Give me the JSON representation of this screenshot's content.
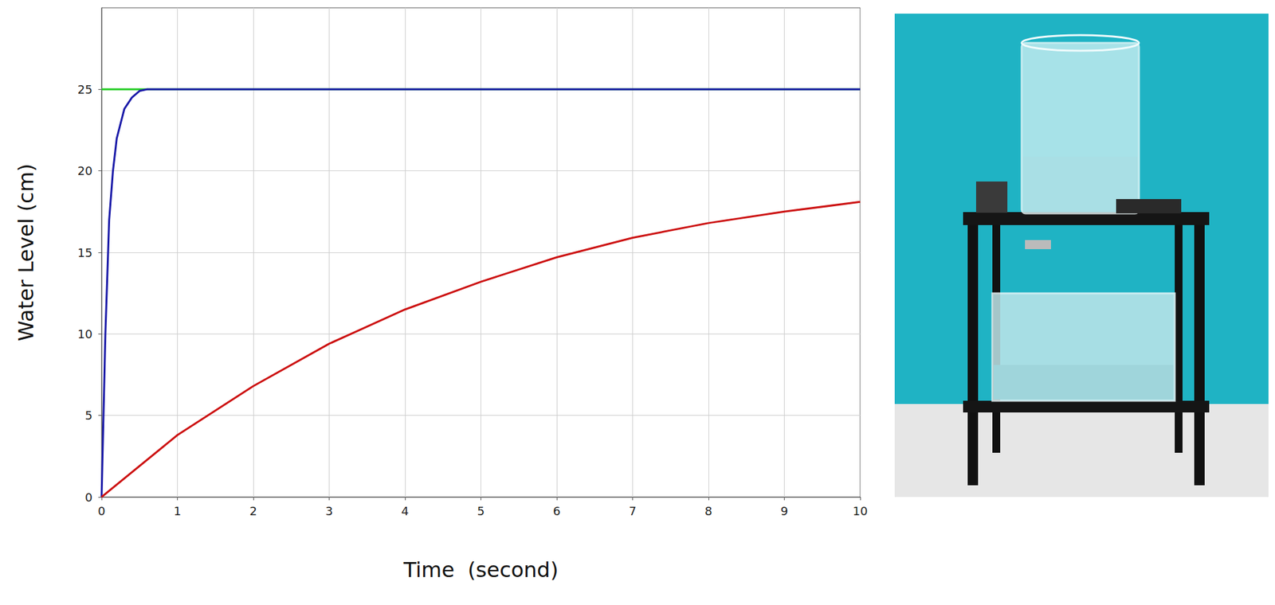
{
  "chart_data": {
    "type": "line",
    "x_label": "Time  (second)",
    "y_label": "Water Level (cm)",
    "xlim": [
      0,
      10
    ],
    "xticks": [
      0,
      1,
      2,
      3,
      4,
      5,
      6,
      7,
      8,
      9,
      10
    ],
    "ylim": [
      0,
      30
    ],
    "yticks": [
      0,
      5,
      10,
      15,
      20,
      25
    ],
    "grid": true,
    "series": [
      {
        "color": "#22cc22",
        "x": [
          0,
          10
        ],
        "values": [
          25,
          25
        ]
      },
      {
        "color": "#1a1aa8",
        "x": [
          0,
          0.05,
          0.1,
          0.15,
          0.2,
          0.3,
          0.4,
          0.5,
          0.6,
          1,
          10
        ],
        "values": [
          0,
          10,
          17,
          20,
          22,
          23.8,
          24.5,
          24.9,
          25,
          25,
          25
        ]
      },
      {
        "color": "#cc1111",
        "x": [
          0,
          1,
          2,
          3,
          4,
          5,
          6,
          7,
          8,
          9,
          10
        ],
        "values": [
          0,
          3.8,
          6.8,
          9.4,
          11.5,
          13.2,
          14.7,
          15.9,
          16.8,
          17.5,
          18.1
        ]
      }
    ]
  }
}
